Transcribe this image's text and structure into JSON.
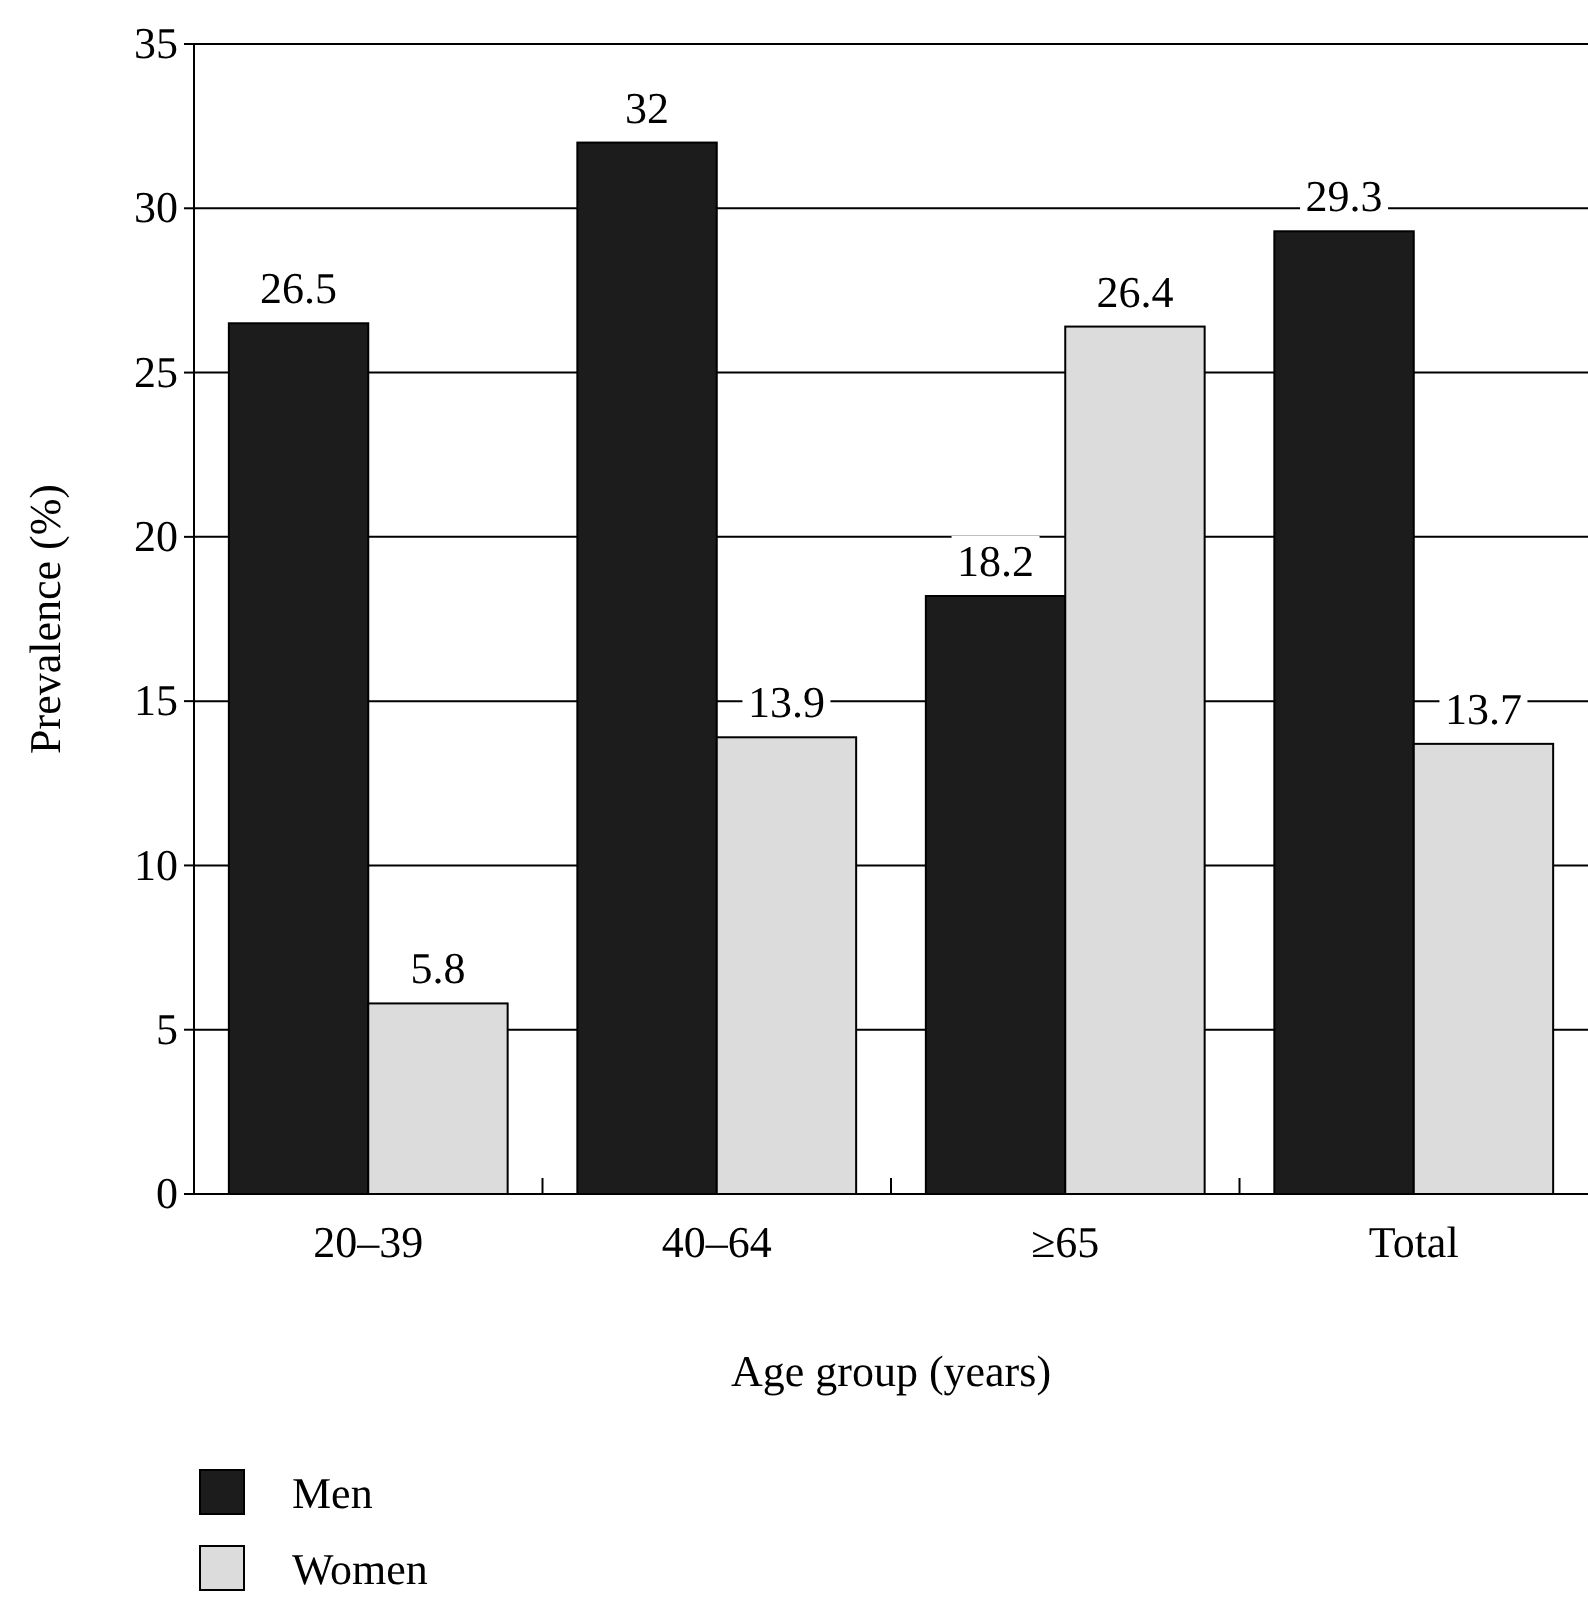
{
  "chart_data": {
    "type": "bar",
    "xlabel": "Age group (years)",
    "ylabel": "Prevalence (%)",
    "categories": [
      "20–39",
      "40–64",
      "≥65",
      "Total"
    ],
    "series": [
      {
        "name": "Men",
        "color": "#1c1c1c",
        "values": [
          26.5,
          32,
          18.2,
          29.3
        ]
      },
      {
        "name": "Women",
        "color": "#dcdcdc",
        "values": [
          5.8,
          13.9,
          26.4,
          13.7
        ]
      }
    ],
    "ylim": [
      0,
      35
    ],
    "yticks": [
      0,
      5,
      10,
      15,
      20,
      25,
      30,
      35
    ],
    "grid": "y",
    "data_labels": true,
    "legend": "bottom"
  }
}
